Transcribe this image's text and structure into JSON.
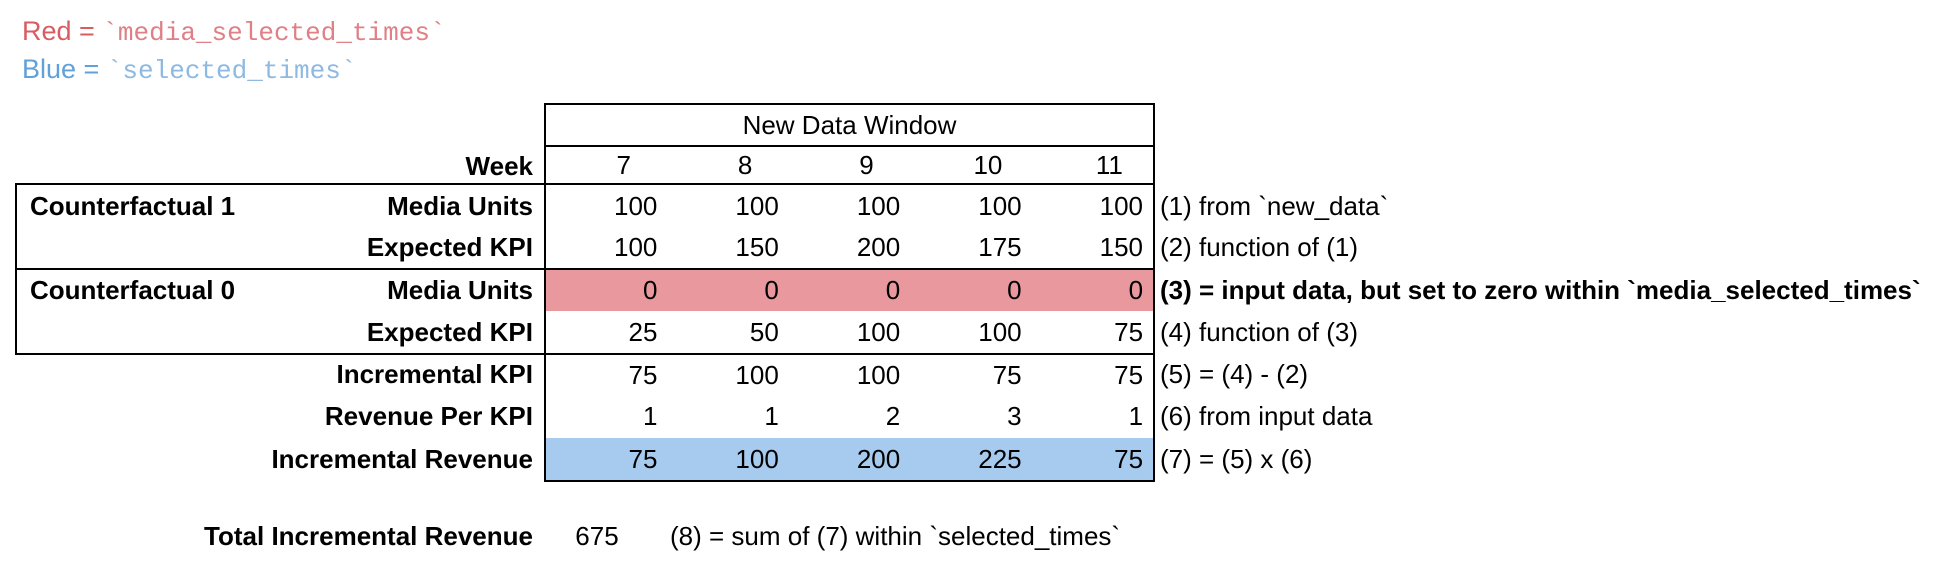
{
  "legend": {
    "red": {
      "prefix": "Red = ",
      "code": "`media_selected_times`"
    },
    "blue": {
      "prefix": "Blue = ",
      "code": "`selected_times`"
    }
  },
  "table": {
    "window_title": "New Data Window",
    "week_label": "Week",
    "weeks": [
      "7",
      "8",
      "9",
      "10",
      "11"
    ],
    "groups": {
      "counterfactual_1": "Counterfactual 1",
      "counterfactual_0": "Counterfactual 0"
    },
    "rows": [
      {
        "label": "Media Units",
        "values": [
          "100",
          "100",
          "100",
          "100",
          "100"
        ],
        "highlight": "none",
        "annotation": "(1) from `new_data`"
      },
      {
        "label": "Expected KPI",
        "values": [
          "100",
          "150",
          "200",
          "175",
          "150"
        ],
        "highlight": "none",
        "annotation": "(2) function of (1)"
      },
      {
        "label": "Media Units",
        "values": [
          "0",
          "0",
          "0",
          "0",
          "0"
        ],
        "highlight": "red",
        "annotation": "(3) = input data, but set to zero within `media_selected_times`"
      },
      {
        "label": "Expected KPI",
        "values": [
          "25",
          "50",
          "100",
          "100",
          "75"
        ],
        "highlight": "none",
        "annotation": "(4) function of (3)"
      },
      {
        "label": "Incremental KPI",
        "values": [
          "75",
          "100",
          "100",
          "75",
          "75"
        ],
        "highlight": "none",
        "annotation": "(5) = (4) - (2)"
      },
      {
        "label": "Revenue Per KPI",
        "values": [
          "1",
          "1",
          "2",
          "3",
          "1"
        ],
        "highlight": "none",
        "annotation": "(6) from input data"
      },
      {
        "label": "Incremental Revenue",
        "values": [
          "75",
          "100",
          "200",
          "225",
          "75"
        ],
        "highlight": "blue",
        "annotation": "(7) = (5) x (6)"
      }
    ]
  },
  "footer": {
    "label": "Total Incremental Revenue",
    "value": "675",
    "annotation": "(8) = sum of (7) within `selected_times`"
  },
  "colors": {
    "red_row_fill": "#E9999E",
    "blue_row_fill": "#A6CBEE",
    "legend_red_text": "#D85C62",
    "legend_red_code_text": "#DF8086",
    "legend_blue_text": "#61A1D9",
    "legend_blue_code_text": "#8DB9E2",
    "border": "#000000"
  }
}
